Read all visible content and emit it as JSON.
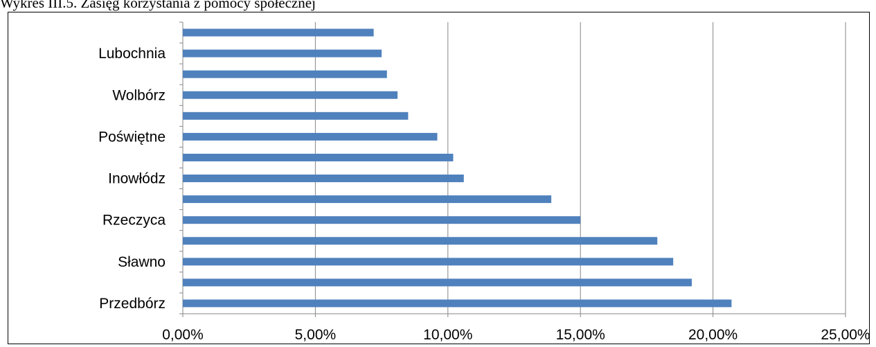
{
  "caption": "Wykres III.5. Zasięg korzystania z pomocy społecznej",
  "chart_data": {
    "type": "bar",
    "orientation": "horizontal",
    "title": "",
    "xlabel": "",
    "ylabel": "",
    "xlim": [
      0,
      25
    ],
    "x_ticks": [
      0,
      5,
      10,
      15,
      20,
      25
    ],
    "x_tick_labels": [
      "0,00%",
      "5,00%",
      "10,00%",
      "15,00%",
      "20,00%",
      "25,00%"
    ],
    "grid": "vertical",
    "bar_color": "#4F81BD",
    "categories": [
      "Przedbórz",
      "",
      "Sławno",
      "",
      "Rzeczyca",
      "",
      "Inowłódz",
      "",
      "Poświętne",
      "",
      "Wolbórz",
      "",
      "Lubochnia",
      ""
    ],
    "values": [
      20.7,
      19.2,
      18.5,
      17.9,
      15.0,
      13.9,
      10.6,
      10.2,
      9.6,
      8.5,
      8.1,
      7.7,
      7.5,
      7.2
    ]
  }
}
